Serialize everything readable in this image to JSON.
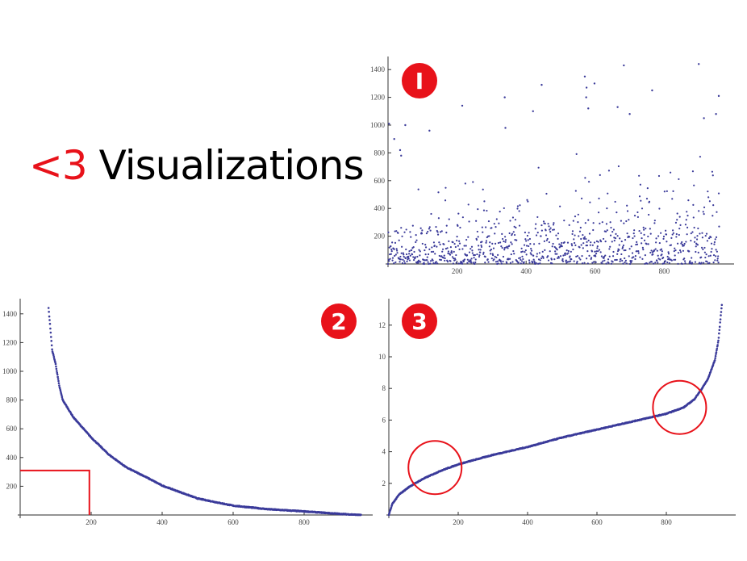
{
  "slide": {
    "title_heart": "<3",
    "title_text": "Visualizations",
    "accent_color": "#e8121a",
    "point_color": "#3b3b9a"
  },
  "chart_data": [
    {
      "type": "scatter",
      "badge": "I",
      "title": "",
      "n_points": 960,
      "description_of_values": "values per item index, heavily concentrated near 0, occasional outliers up to ~1440",
      "outliers": [
        [
          3,
          1010
        ],
        [
          18,
          900
        ],
        [
          35,
          820
        ],
        [
          38,
          780
        ],
        [
          50,
          1000
        ],
        [
          120,
          960
        ],
        [
          215,
          1140
        ],
        [
          338,
          1200
        ],
        [
          340,
          980
        ],
        [
          420,
          1100
        ],
        [
          445,
          1290
        ],
        [
          570,
          1350
        ],
        [
          575,
          1270
        ],
        [
          574,
          1200
        ],
        [
          580,
          1120
        ],
        [
          598,
          1300
        ],
        [
          683,
          1430
        ],
        [
          665,
          1130
        ],
        [
          700,
          1080
        ],
        [
          765,
          1250
        ],
        [
          900,
          1440
        ],
        [
          915,
          1050
        ],
        [
          958,
          1210
        ],
        [
          950,
          1080
        ]
      ],
      "xlim": [
        0,
        960
      ],
      "ylim": [
        0,
        1480
      ],
      "xticks": [
        "200",
        "400",
        "600",
        "800"
      ],
      "xtick_values": [
        200,
        400,
        600,
        800
      ],
      "yticks": [
        "200",
        "400",
        "600",
        "800",
        "1000",
        "1200",
        "1400"
      ],
      "ytick_values": [
        200,
        400,
        600,
        800,
        1000,
        1200,
        1400
      ]
    },
    {
      "type": "scatter",
      "badge": "2",
      "title": "",
      "description_of_values": "same values sorted descending",
      "curve": [
        [
          80,
          1440
        ],
        [
          85,
          1300
        ],
        [
          90,
          1150
        ],
        [
          100,
          1050
        ],
        [
          110,
          900
        ],
        [
          120,
          800
        ],
        [
          150,
          680
        ],
        [
          200,
          540
        ],
        [
          250,
          420
        ],
        [
          300,
          330
        ],
        [
          350,
          270
        ],
        [
          400,
          205
        ],
        [
          450,
          160
        ],
        [
          500,
          115
        ],
        [
          600,
          65
        ],
        [
          700,
          40
        ],
        [
          800,
          25
        ],
        [
          900,
          8
        ],
        [
          960,
          0
        ]
      ],
      "highlight_box": {
        "x_max": 195,
        "y_max": 310
      },
      "xlim": [
        0,
        960
      ],
      "ylim": [
        0,
        1480
      ],
      "xticks": [
        "200",
        "400",
        "600",
        "800"
      ],
      "xtick_values": [
        200,
        400,
        600,
        800
      ],
      "yticks": [
        "200",
        "400",
        "600",
        "800",
        "1000",
        "1200",
        "1400"
      ],
      "ytick_values": [
        200,
        400,
        600,
        800,
        1000,
        1200,
        1400
      ]
    },
    {
      "type": "scatter",
      "badge": "3",
      "title": "",
      "description_of_values": "sorted ascending, transformed scale",
      "curve": [
        [
          0,
          0
        ],
        [
          10,
          0.7
        ],
        [
          30,
          1.3
        ],
        [
          60,
          1.8
        ],
        [
          100,
          2.3
        ],
        [
          150,
          2.8
        ],
        [
          200,
          3.2
        ],
        [
          250,
          3.5
        ],
        [
          300,
          3.8
        ],
        [
          400,
          4.3
        ],
        [
          500,
          4.9
        ],
        [
          600,
          5.4
        ],
        [
          700,
          5.9
        ],
        [
          800,
          6.4
        ],
        [
          850,
          6.8
        ],
        [
          880,
          7.3
        ],
        [
          900,
          7.9
        ],
        [
          920,
          8.6
        ],
        [
          940,
          9.8
        ],
        [
          950,
          11
        ],
        [
          960,
          13.3
        ]
      ],
      "highlight_circles": [
        {
          "x": 175,
          "y": 3.0
        },
        {
          "x": 880,
          "y": 6.8
        }
      ],
      "xlim": [
        0,
        960
      ],
      "ylim": [
        0,
        13.5
      ],
      "xticks": [
        "200",
        "400",
        "600",
        "800"
      ],
      "xtick_values": [
        200,
        400,
        600,
        800
      ],
      "yticks": [
        "2",
        "4",
        "6",
        "8",
        "10",
        "12"
      ],
      "ytick_values": [
        2,
        4,
        6,
        8,
        10,
        12
      ]
    }
  ]
}
